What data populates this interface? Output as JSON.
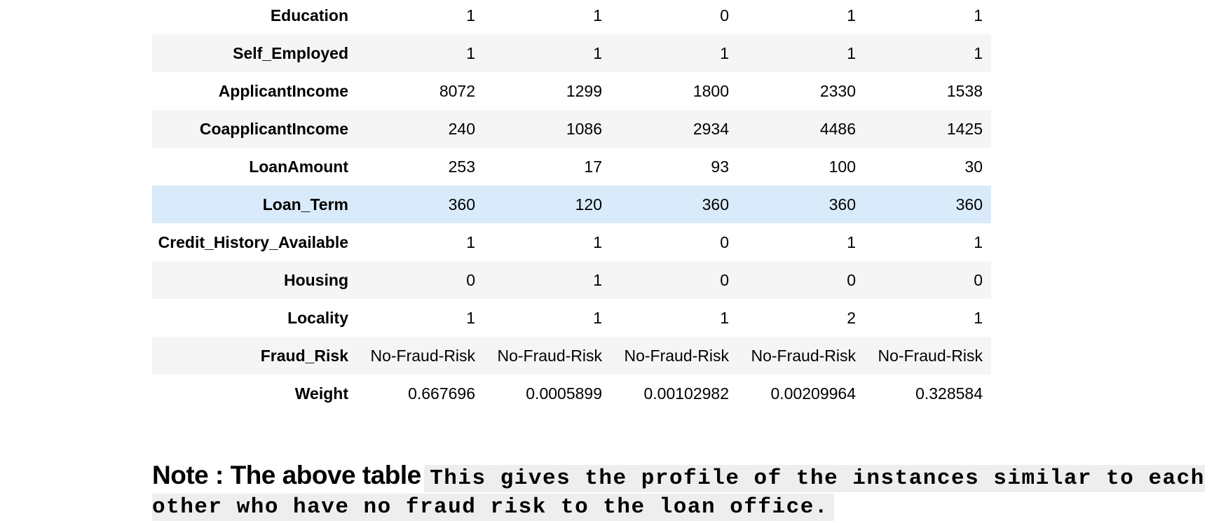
{
  "table": {
    "rows": [
      {
        "label": "Education",
        "values": [
          "1",
          "1",
          "0",
          "1",
          "1"
        ]
      },
      {
        "label": "Self_Employed",
        "values": [
          "1",
          "1",
          "1",
          "1",
          "1"
        ]
      },
      {
        "label": "ApplicantIncome",
        "values": [
          "8072",
          "1299",
          "1800",
          "2330",
          "1538"
        ]
      },
      {
        "label": "CoapplicantIncome",
        "values": [
          "240",
          "1086",
          "2934",
          "4486",
          "1425"
        ]
      },
      {
        "label": "LoanAmount",
        "values": [
          "253",
          "17",
          "93",
          "100",
          "30"
        ]
      },
      {
        "label": "Loan_Term",
        "values": [
          "360",
          "120",
          "360",
          "360",
          "360"
        ]
      },
      {
        "label": "Credit_History_Available",
        "values": [
          "1",
          "1",
          "0",
          "1",
          "1"
        ]
      },
      {
        "label": "Housing",
        "values": [
          "0",
          "1",
          "0",
          "0",
          "0"
        ]
      },
      {
        "label": "Locality",
        "values": [
          "1",
          "1",
          "1",
          "2",
          "1"
        ]
      },
      {
        "label": "Fraud_Risk",
        "values": [
          "No-Fraud-Risk",
          "No-Fraud-Risk",
          "No-Fraud-Risk",
          "No-Fraud-Risk",
          "No-Fraud-Risk"
        ]
      },
      {
        "label": "Weight",
        "values": [
          "0.667696",
          "0.0005899",
          "0.00102982",
          "0.00209964",
          "0.328584"
        ]
      }
    ]
  },
  "note": {
    "heading": "Note : The above table",
    "code": "This gives the profile of the instances similar to each other who have no fraud risk to the loan office."
  },
  "colors": {
    "stripe": "#f5f5f5",
    "hover_row": "#d9ebfa",
    "code_background": "#eeeeee"
  }
}
